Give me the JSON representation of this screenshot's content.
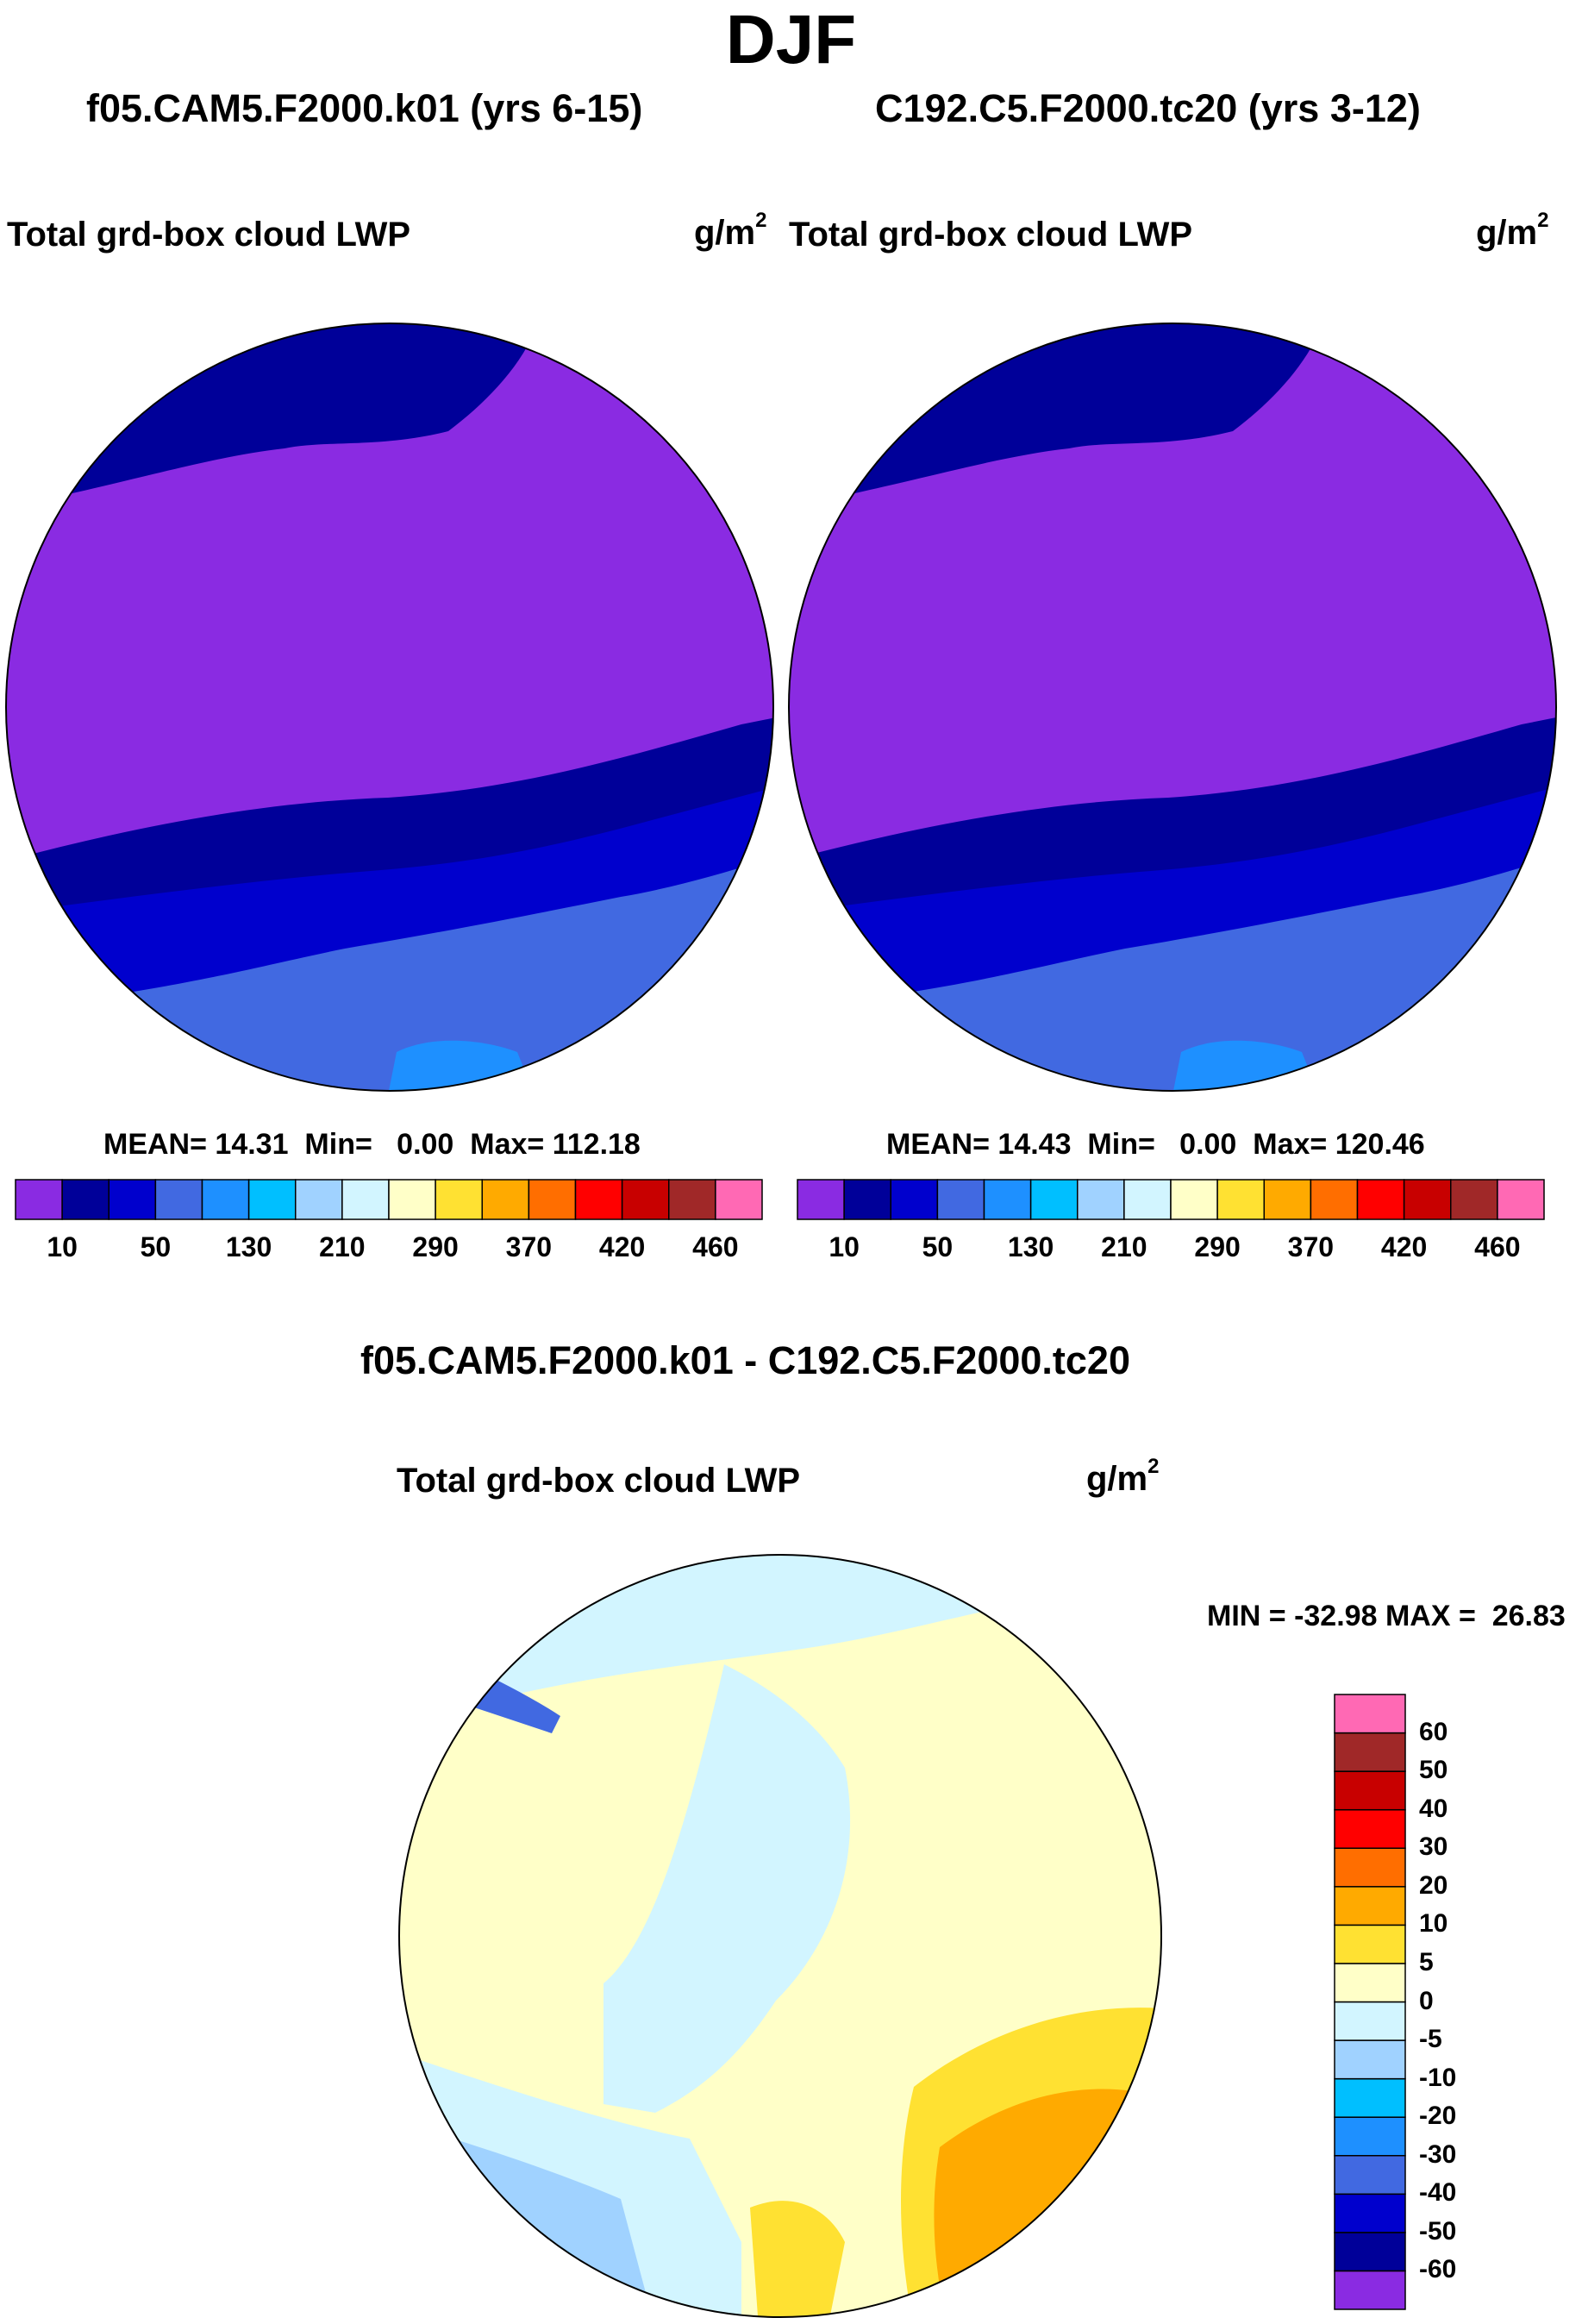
{
  "header": {
    "season": "DJF",
    "left_run": "f05.CAM5.F2000.k01 (yrs 6-15)",
    "right_run": "C192.C5.F2000.tc20 (yrs 3-12)",
    "diff_title": "f05.CAM5.F2000.k01 - C192.C5.F2000.tc20"
  },
  "chart_data": [
    {
      "type": "heatmap",
      "projection": "north polar stereographic",
      "title": "f05.CAM5.F2000.k01 (yrs 6-15)",
      "variable": "Total grd-box cloud LWP",
      "units": "g/m",
      "units_exp": "2",
      "stats": {
        "mean_label": "MEAN=",
        "mean": "14.31",
        "min_label": "Min=",
        "min": "0.00",
        "max_label": "Max=",
        "max": "112.18"
      },
      "colorbar": {
        "orientation": "horizontal",
        "colors": [
          "#8a2be2",
          "#000099",
          "#0000cd",
          "#4169e1",
          "#1e90ff",
          "#00bfff",
          "#a0d2ff",
          "#d2f5ff",
          "#ffffc8",
          "#ffe132",
          "#ffaa00",
          "#ff6e00",
          "#ff0000",
          "#c80000",
          "#a02828",
          "#ff69b4"
        ],
        "tick_labels": [
          "10",
          "50",
          "130",
          "210",
          "290",
          "370",
          "420",
          "460"
        ]
      }
    },
    {
      "type": "heatmap",
      "projection": "north polar stereographic",
      "title": "C192.C5.F2000.tc20 (yrs 3-12)",
      "variable": "Total grd-box cloud LWP",
      "units": "g/m",
      "units_exp": "2",
      "stats": {
        "mean_label": "MEAN=",
        "mean": "14.43",
        "min_label": "Min=",
        "min": "0.00",
        "max_label": "Max=",
        "max": "120.46"
      },
      "colorbar": {
        "orientation": "horizontal",
        "colors": [
          "#8a2be2",
          "#000099",
          "#0000cd",
          "#4169e1",
          "#1e90ff",
          "#00bfff",
          "#a0d2ff",
          "#d2f5ff",
          "#ffffc8",
          "#ffe132",
          "#ffaa00",
          "#ff6e00",
          "#ff0000",
          "#c80000",
          "#a02828",
          "#ff69b4"
        ],
        "tick_labels": [
          "10",
          "50",
          "130",
          "210",
          "290",
          "370",
          "420",
          "460"
        ]
      }
    },
    {
      "type": "heatmap",
      "projection": "north polar stereographic",
      "title": "f05.CAM5.F2000.k01 - C192.C5.F2000.tc20",
      "variable": "Total grd-box cloud LWP",
      "units": "g/m",
      "units_exp": "2",
      "stats": {
        "min_label": "MIN =",
        "min": "-32.98",
        "max_label": "MAX =",
        "max": "26.83"
      },
      "colorbar": {
        "orientation": "vertical",
        "colors_bottom_to_top": [
          "#8a2be2",
          "#000099",
          "#0000cd",
          "#4169e1",
          "#1e90ff",
          "#00bfff",
          "#a0d2ff",
          "#d2f5ff",
          "#ffffc8",
          "#ffe132",
          "#ffaa00",
          "#ff6e00",
          "#ff0000",
          "#c80000",
          "#a02828",
          "#ff69b4"
        ],
        "tick_labels_bottom_to_top": [
          "-60",
          "-50",
          "-40",
          "-30",
          "-20",
          "-10",
          "-5",
          "0",
          "5",
          "10",
          "20",
          "30",
          "40",
          "50",
          "60"
        ]
      }
    }
  ]
}
